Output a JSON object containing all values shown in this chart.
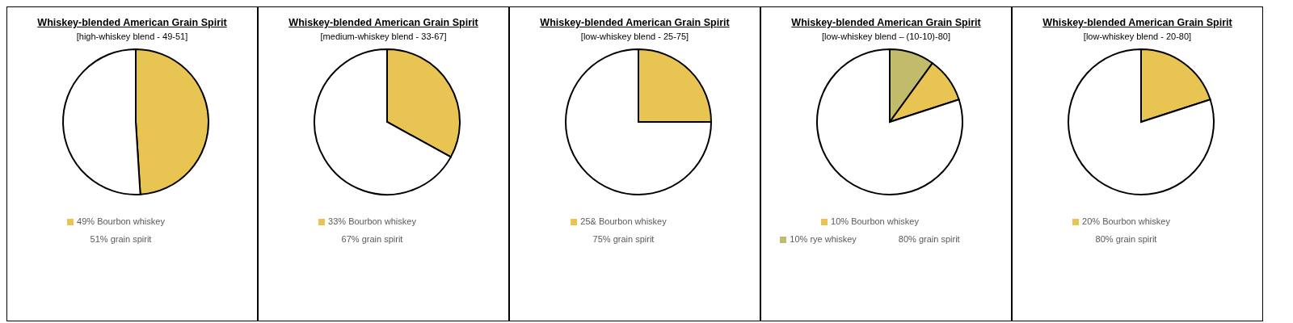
{
  "chart_data": [
    {
      "type": "pie",
      "title": "Whiskey-blended American Grain Spirit",
      "subtitle": "[high-whiskey blend - 49-51]",
      "categories": [
        "49% Bourbon whiskey",
        "51% grain spirit"
      ],
      "values": [
        49,
        51
      ],
      "colors": [
        "#e8c552",
        "#ffffff"
      ],
      "legend": "bottom"
    },
    {
      "type": "pie",
      "title": "Whiskey-blended American Grain Spirit",
      "subtitle": "[medium-whiskey blend - 33-67]",
      "categories": [
        "33% Bourbon whiskey",
        "67% grain spirit"
      ],
      "values": [
        33,
        67
      ],
      "colors": [
        "#e8c552",
        "#ffffff"
      ],
      "legend": "bottom"
    },
    {
      "type": "pie",
      "title": "Whiskey-blended American Grain Spirit",
      "subtitle": "[low-whiskey blend - 25-75]",
      "categories": [
        "25& Bourbon whiskey",
        "75% grain spirit"
      ],
      "values": [
        25,
        75
      ],
      "colors": [
        "#e8c552",
        "#ffffff"
      ],
      "legend": "bottom"
    },
    {
      "type": "pie",
      "title": "Whiskey-blended American Grain Spirit",
      "subtitle": "[low-whiskey blend – (10-10)-80]",
      "categories": [
        "10% rye whiskey",
        "10% Bourbon whiskey",
        "80% grain spirit"
      ],
      "values": [
        10,
        10,
        80
      ],
      "colors": [
        "#c2bb6c",
        "#e8c552",
        "#ffffff"
      ],
      "legend": "bottom"
    },
    {
      "type": "pie",
      "title": "Whiskey-blended American Grain Spirit",
      "subtitle": "[low-whiskey blend - 20-80]",
      "categories": [
        "20% Bourbon whiskey",
        "80% grain spirit"
      ],
      "values": [
        20,
        80
      ],
      "colors": [
        "#e8c552",
        "#ffffff"
      ],
      "legend": "bottom"
    }
  ]
}
